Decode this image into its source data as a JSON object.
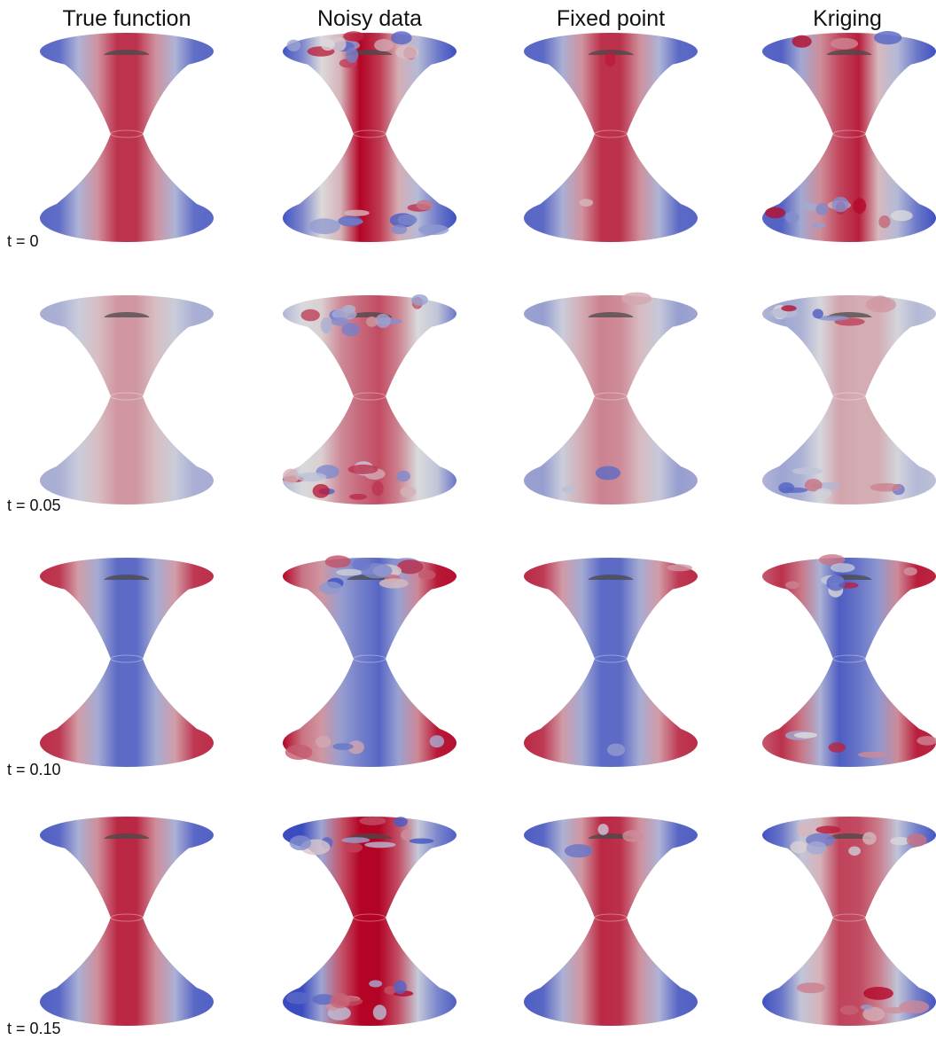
{
  "columns": [
    "True function",
    "Noisy data",
    "Fixed point",
    "Kriging"
  ],
  "rows": [
    "t = 0",
    "t = 0.05",
    "t = 0.10",
    "t = 0.15"
  ],
  "colormap": {
    "low": "#3a4cc0",
    "mid": "#dddddd",
    "high": "#b40426",
    "neck_shade": "#555555"
  },
  "panels": [
    {
      "row": 0,
      "col": 0,
      "pattern": "smooth",
      "polarity": 1,
      "strength": 0.85,
      "noise": 0.0
    },
    {
      "row": 0,
      "col": 1,
      "pattern": "noisy",
      "polarity": 1,
      "strength": 0.85,
      "noise": 0.9
    },
    {
      "row": 0,
      "col": 2,
      "pattern": "smooth",
      "polarity": 1,
      "strength": 0.85,
      "noise": 0.08
    },
    {
      "row": 0,
      "col": 3,
      "pattern": "noisy",
      "polarity": 1,
      "strength": 0.85,
      "noise": 0.55
    },
    {
      "row": 1,
      "col": 0,
      "pattern": "smooth",
      "polarity": 1,
      "strength": 0.35,
      "noise": 0.0
    },
    {
      "row": 1,
      "col": 1,
      "pattern": "noisy",
      "polarity": 1,
      "strength": 0.35,
      "noise": 0.95
    },
    {
      "row": 1,
      "col": 2,
      "pattern": "smooth",
      "polarity": 1,
      "strength": 0.45,
      "noise": 0.12
    },
    {
      "row": 1,
      "col": 3,
      "pattern": "noisy",
      "polarity": 1,
      "strength": 0.4,
      "noise": 0.6
    },
    {
      "row": 2,
      "col": 0,
      "pattern": "smooth",
      "polarity": -1,
      "strength": 0.85,
      "noise": 0.0
    },
    {
      "row": 2,
      "col": 1,
      "pattern": "noisy",
      "polarity": -1,
      "strength": 0.85,
      "noise": 0.7
    },
    {
      "row": 2,
      "col": 2,
      "pattern": "smooth",
      "polarity": -1,
      "strength": 0.85,
      "noise": 0.08
    },
    {
      "row": 2,
      "col": 3,
      "pattern": "noisy",
      "polarity": -1,
      "strength": 0.85,
      "noise": 0.5
    },
    {
      "row": 3,
      "col": 0,
      "pattern": "smooth",
      "polarity": 1,
      "strength": 0.9,
      "noise": 0.0
    },
    {
      "row": 3,
      "col": 1,
      "pattern": "noisy",
      "polarity": 1,
      "strength": 0.9,
      "noise": 0.85
    },
    {
      "row": 3,
      "col": 2,
      "pattern": "smooth",
      "polarity": 1,
      "strength": 0.9,
      "noise": 0.1
    },
    {
      "row": 3,
      "col": 3,
      "pattern": "noisy",
      "polarity": 1,
      "strength": 0.9,
      "noise": 0.6
    }
  ]
}
